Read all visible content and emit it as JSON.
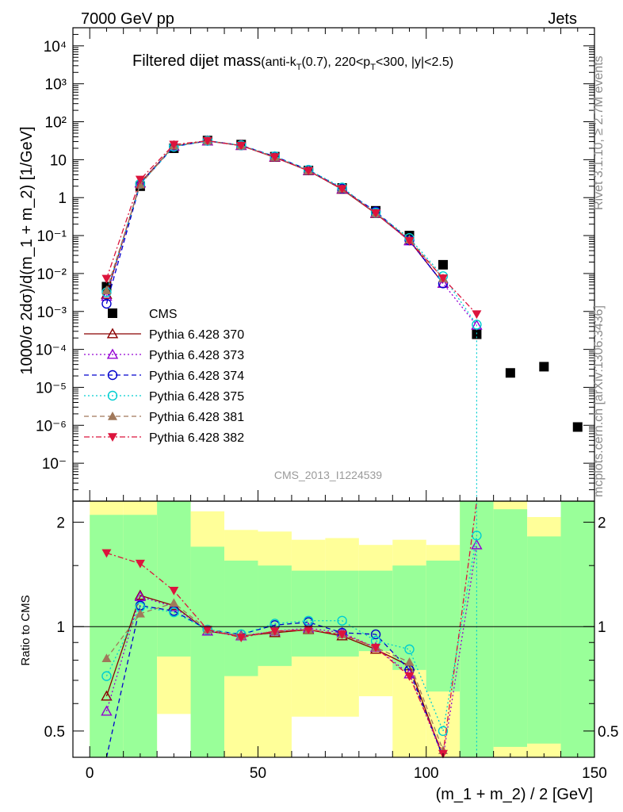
{
  "header": {
    "left": "7000 GeV pp",
    "right": "Jets"
  },
  "title": {
    "main": "Filtered dijet mass",
    "sub_prefix": "(anti-k",
    "sub_T1": "T",
    "sub_mid": "(0.7), 220<p",
    "sub_T2": "T",
    "sub_suffix": "<300, |y|<2.5)"
  },
  "watermark": "CMS_2013_I1224539",
  "side_text": {
    "rivet": "Rivet 3.1.10, ≥ 2.7M events",
    "mcplots": "mcplots.cern.ch [arXiv:1306.3436]"
  },
  "colors": {
    "green_band": "#99ff99",
    "yellow_band": "#ffff99",
    "data": "#000000"
  },
  "chart_data": [
    {
      "type": "line",
      "panel": "main",
      "ylabel": "1000/σ 2dσ)/d(m_1 + m_2) [1/GeV]",
      "yscale": "log",
      "ylim": [
        1e-08,
        30000
      ],
      "xlim": [
        -5,
        150
      ],
      "ytick_labels": [
        "10⁻",
        "10⁻⁶",
        "10⁻⁵",
        "10⁻⁴",
        "10⁻³",
        "10⁻²",
        "10⁻¹",
        "1",
        "10",
        "10²",
        "10³",
        "10⁴"
      ],
      "x": [
        5,
        15,
        25,
        35,
        45,
        55,
        65,
        75,
        85,
        95,
        105,
        115,
        125,
        135,
        145
      ],
      "series": [
        {
          "name": "CMS",
          "color": "#000000",
          "marker": "square",
          "dash": "",
          "values": [
            0.0045,
            2.0,
            20,
            32,
            25,
            12,
            5.2,
            1.8,
            0.45,
            0.1,
            0.017,
            0.00025,
            2.4e-05,
            3.5e-05,
            9e-07
          ]
        },
        {
          "name": "Pythia 6.428 370",
          "color": "#8b0000",
          "marker": "triangle-open",
          "dash": "",
          "values": [
            0.0028,
            2.45,
            23,
            31,
            23.5,
            11.5,
            5.1,
            1.65,
            0.38,
            0.074,
            0.0055,
            null,
            null,
            null,
            null
          ]
        },
        {
          "name": "Pythia 6.428 373",
          "color": "#9400d3",
          "marker": "triangle-open",
          "dash": "2,3",
          "values": [
            0.0025,
            2.4,
            22.5,
            31,
            23.5,
            11.8,
            5.15,
            1.7,
            0.39,
            0.072,
            0.0055,
            0.00043,
            null,
            null,
            null
          ]
        },
        {
          "name": "Pythia 6.428 374",
          "color": "#0000cd",
          "marker": "circle-open",
          "dash": "6,4",
          "values": [
            0.0016,
            2.3,
            22,
            31.5,
            24,
            12.2,
            5.4,
            1.72,
            0.43,
            0.075,
            0.0055,
            null,
            null,
            null,
            null
          ]
        },
        {
          "name": "Pythia 6.428 375",
          "color": "#00ced1",
          "marker": "circle-open",
          "dash": "2,3",
          "values": [
            0.0032,
            2.3,
            22,
            31.5,
            24,
            12.3,
            5.4,
            1.85,
            0.4,
            0.086,
            0.0085,
            0.00045,
            null,
            null,
            null
          ]
        },
        {
          "name": "Pythia 6.428 381",
          "color": "#a0785a",
          "marker": "triangle-filled",
          "dash": "6,4",
          "values": [
            0.0036,
            2.2,
            23.5,
            31.5,
            23.5,
            11.7,
            5.1,
            1.7,
            0.39,
            0.078,
            0.0075,
            null,
            null,
            null,
            null
          ]
        },
        {
          "name": "Pythia 6.428 382",
          "color": "#dc143c",
          "marker": "triangle-down-filled",
          "dash": "7,3,2,3",
          "values": [
            0.0073,
            3.0,
            25,
            31.5,
            23.5,
            11.7,
            5.1,
            1.7,
            0.39,
            0.072,
            0.0075,
            0.00085,
            null,
            null,
            null
          ]
        }
      ]
    },
    {
      "type": "line",
      "panel": "ratio",
      "ylabel": "Ratio to CMS",
      "xlabel": "(m_1 + m_2) / 2 [GeV]",
      "ylim": [
        0.42,
        2.3
      ],
      "xlim": [
        -5,
        150
      ],
      "xticks": [
        0,
        50,
        100,
        150
      ],
      "yticks": [
        0.5,
        1,
        2
      ],
      "bands": [
        {
          "x0": 0,
          "x1": 10,
          "green": [
            0.42,
            2.1
          ],
          "yellow": [
            0.42,
            2.3
          ]
        },
        {
          "x0": 10,
          "x1": 20,
          "green": [
            0.42,
            2.1
          ],
          "yellow": [
            0.42,
            2.3
          ]
        },
        {
          "x0": 20,
          "x1": 30,
          "green": [
            0.82,
            2.3
          ],
          "yellow": [
            0.56,
            2.3
          ]
        },
        {
          "x0": 30,
          "x1": 40,
          "green": [
            0.42,
            1.7
          ],
          "yellow": [
            0.42,
            2.15
          ]
        },
        {
          "x0": 40,
          "x1": 50,
          "green": [
            0.72,
            1.55
          ],
          "yellow": [
            0.42,
            1.9
          ]
        },
        {
          "x0": 50,
          "x1": 60,
          "green": [
            0.77,
            1.5
          ],
          "yellow": [
            0.42,
            1.88
          ]
        },
        {
          "x0": 60,
          "x1": 70,
          "green": [
            0.82,
            1.45
          ],
          "yellow": [
            0.55,
            1.78
          ]
        },
        {
          "x0": 70,
          "x1": 80,
          "green": [
            0.82,
            1.45
          ],
          "yellow": [
            0.55,
            1.8
          ]
        },
        {
          "x0": 80,
          "x1": 90,
          "green": [
            0.85,
            1.45
          ],
          "yellow": [
            0.63,
            1.72
          ]
        },
        {
          "x0": 90,
          "x1": 100,
          "green": [
            0.75,
            1.5
          ],
          "yellow": [
            0.42,
            1.78
          ]
        },
        {
          "x0": 100,
          "x1": 110,
          "green": [
            0.65,
            1.55
          ],
          "yellow": [
            0.42,
            1.72
          ]
        },
        {
          "x0": 110,
          "x1": 120,
          "green": [
            0.42,
            2.3
          ],
          "yellow": [
            0.42,
            2.3
          ]
        },
        {
          "x0": 120,
          "x1": 130,
          "green": [
            0.45,
            2.18
          ],
          "yellow": [
            0.42,
            2.3
          ]
        },
        {
          "x0": 130,
          "x1": 140,
          "green": [
            0.46,
            1.82
          ],
          "yellow": [
            0.42,
            2.07
          ]
        },
        {
          "x0": 140,
          "x1": 150,
          "green": [
            0.42,
            2.3
          ],
          "yellow": [
            0.42,
            2.3
          ]
        }
      ],
      "series": [
        {
          "name": "Pythia 6.428 370",
          "values": [
            0.63,
            1.23,
            1.15,
            0.97,
            0.94,
            0.96,
            0.98,
            0.94,
            0.86,
            0.77,
            0.3,
            null
          ]
        },
        {
          "name": "Pythia 6.428 373",
          "values": [
            0.57,
            1.22,
            1.14,
            0.97,
            0.94,
            0.97,
            0.99,
            0.96,
            0.87,
            0.73,
            0.3,
            1.72
          ]
        },
        {
          "name": "Pythia 6.428 374",
          "values": [
            0.36,
            1.15,
            1.11,
            0.98,
            0.95,
            1.01,
            1.03,
            0.96,
            0.95,
            0.75,
            0.32,
            null
          ]
        },
        {
          "name": "Pythia 6.428 375",
          "values": [
            0.72,
            1.14,
            1.1,
            0.98,
            0.95,
            1.02,
            1.04,
            1.04,
            0.91,
            0.86,
            0.5,
            1.83
          ]
        },
        {
          "name": "Pythia 6.428 381",
          "values": [
            0.81,
            1.09,
            1.17,
            0.98,
            0.94,
            0.97,
            0.98,
            0.95,
            0.87,
            0.79,
            0.44,
            null
          ]
        },
        {
          "name": "Pythia 6.428 382",
          "values": [
            1.63,
            1.52,
            1.27,
            0.98,
            0.93,
            0.97,
            0.98,
            0.95,
            0.87,
            0.72,
            0.43,
            2.3
          ]
        }
      ]
    }
  ]
}
